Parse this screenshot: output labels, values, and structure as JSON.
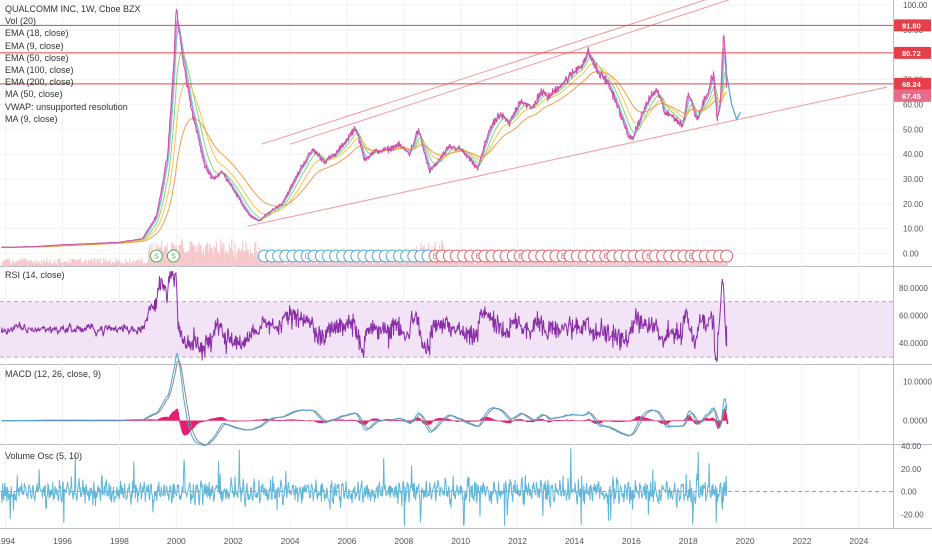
{
  "header": {
    "title": "QUALCOMM INC, 1W, Cboe BZX",
    "indicators": [
      "Vol (20)",
      "EMA (18, close)",
      "EMA (9, close)",
      "EMA (50, close)",
      "EMA (100, close)",
      "EMA (200, close)",
      "MA (50, close)",
      "VWAP: unsupported resolution",
      "MA (9, close)"
    ]
  },
  "panes": {
    "rsi_label": "RSI (14, close)",
    "macd_label": "MACD (12, 26, close, 9)",
    "volosc_label": "Volume Osc (5, 10)"
  },
  "chart_data": {
    "type": "line",
    "title": "QUALCOMM INC, 1W, Cboe BZX",
    "x_ticks": [
      "1994",
      "1996",
      "1998",
      "2000",
      "2002",
      "2004",
      "2006",
      "2008",
      "2010",
      "2012",
      "2014",
      "2016",
      "2018",
      "2020",
      "2022",
      "2024"
    ],
    "x_range": [
      1993.8,
      2025.2
    ],
    "price_axis": {
      "ticks": [
        "100.00",
        "90.00",
        "80.00",
        "70.00",
        "60.00",
        "50.00",
        "40.00",
        "30.00",
        "20.00",
        "10.00",
        "0.00"
      ],
      "range": [
        -5,
        102
      ]
    },
    "horizontal_levels": [
      {
        "value": 91.8,
        "label": "91.80",
        "color": "#e5404a"
      },
      {
        "value": 80.72,
        "label": "80.72",
        "color": "#e5404a"
      },
      {
        "value": 68.24,
        "label": "68.24",
        "color": "#e5404a"
      }
    ],
    "last_price": {
      "value": 67.45,
      "label": "67.45",
      "color": "#e86b8a"
    },
    "price_series": [
      {
        "x": 1994.0,
        "y": 2.5
      },
      {
        "x": 1995.0,
        "y": 2.8
      },
      {
        "x": 1996.0,
        "y": 3.5
      },
      {
        "x": 1997.0,
        "y": 4.0
      },
      {
        "x": 1998.0,
        "y": 4.5
      },
      {
        "x": 1998.8,
        "y": 6
      },
      {
        "x": 1999.3,
        "y": 15
      },
      {
        "x": 1999.7,
        "y": 40
      },
      {
        "x": 1999.9,
        "y": 75
      },
      {
        "x": 2000.0,
        "y": 99
      },
      {
        "x": 2000.2,
        "y": 80
      },
      {
        "x": 2000.5,
        "y": 60
      },
      {
        "x": 2000.8,
        "y": 45
      },
      {
        "x": 2001.0,
        "y": 35
      },
      {
        "x": 2001.3,
        "y": 30
      },
      {
        "x": 2001.6,
        "y": 33
      },
      {
        "x": 2001.9,
        "y": 28
      },
      {
        "x": 2002.3,
        "y": 20
      },
      {
        "x": 2002.6,
        "y": 15
      },
      {
        "x": 2002.9,
        "y": 13
      },
      {
        "x": 2003.3,
        "y": 17
      },
      {
        "x": 2003.7,
        "y": 20
      },
      {
        "x": 2004.0,
        "y": 26
      },
      {
        "x": 2004.4,
        "y": 35
      },
      {
        "x": 2004.8,
        "y": 42
      },
      {
        "x": 2005.2,
        "y": 37
      },
      {
        "x": 2005.6,
        "y": 40
      },
      {
        "x": 2006.0,
        "y": 46
      },
      {
        "x": 2006.3,
        "y": 51
      },
      {
        "x": 2006.6,
        "y": 38
      },
      {
        "x": 2007.0,
        "y": 41
      },
      {
        "x": 2007.5,
        "y": 42
      },
      {
        "x": 2007.8,
        "y": 44
      },
      {
        "x": 2008.2,
        "y": 40
      },
      {
        "x": 2008.5,
        "y": 50
      },
      {
        "x": 2008.9,
        "y": 33
      },
      {
        "x": 2009.2,
        "y": 37
      },
      {
        "x": 2009.6,
        "y": 43
      },
      {
        "x": 2010.0,
        "y": 42
      },
      {
        "x": 2010.3,
        "y": 38
      },
      {
        "x": 2010.6,
        "y": 34
      },
      {
        "x": 2011.0,
        "y": 50
      },
      {
        "x": 2011.4,
        "y": 56
      },
      {
        "x": 2011.7,
        "y": 52
      },
      {
        "x": 2012.1,
        "y": 62
      },
      {
        "x": 2012.5,
        "y": 58
      },
      {
        "x": 2012.8,
        "y": 65
      },
      {
        "x": 2013.1,
        "y": 63
      },
      {
        "x": 2013.5,
        "y": 68
      },
      {
        "x": 2013.9,
        "y": 72
      },
      {
        "x": 2014.3,
        "y": 77
      },
      {
        "x": 2014.5,
        "y": 81
      },
      {
        "x": 2014.8,
        "y": 73
      },
      {
        "x": 2015.1,
        "y": 70
      },
      {
        "x": 2015.4,
        "y": 63
      },
      {
        "x": 2015.7,
        "y": 53
      },
      {
        "x": 2016.0,
        "y": 45
      },
      {
        "x": 2016.3,
        "y": 54
      },
      {
        "x": 2016.6,
        "y": 62
      },
      {
        "x": 2016.9,
        "y": 66
      },
      {
        "x": 2017.2,
        "y": 56
      },
      {
        "x": 2017.5,
        "y": 55
      },
      {
        "x": 2017.8,
        "y": 51
      },
      {
        "x": 2018.0,
        "y": 65
      },
      {
        "x": 2018.3,
        "y": 54
      },
      {
        "x": 2018.6,
        "y": 63
      },
      {
        "x": 2018.9,
        "y": 72
      },
      {
        "x": 2019.0,
        "y": 55
      },
      {
        "x": 2019.1,
        "y": 57
      },
      {
        "x": 2019.25,
        "y": 89
      },
      {
        "x": 2019.35,
        "y": 67.45
      }
    ],
    "ema_series": [
      {
        "name": "EMA (9, close)",
        "color": "#c77dd6",
        "smoothing": 0.35
      },
      {
        "name": "EMA (18, close)",
        "color": "#7bc3e0",
        "smoothing": 0.22
      },
      {
        "name": "EMA (50, close)",
        "color": "#8ad27a",
        "smoothing": 0.1
      },
      {
        "name": "EMA (100, close)",
        "color": "#f2c84b",
        "smoothing": 0.05
      },
      {
        "name": "EMA (200, close)",
        "color": "#f0a04e",
        "smoothing": 0.025
      }
    ],
    "channel_lines": [
      {
        "x1": 2002.5,
        "y1": 11,
        "x2": 2025.0,
        "y2": 67
      },
      {
        "x1": 2003.0,
        "y1": 44,
        "x2": 2020.2,
        "y2": 108
      },
      {
        "x1": 2004.0,
        "y1": 44,
        "x2": 2021.0,
        "y2": 108
      }
    ],
    "markers": {
      "splits": [
        {
          "x": 1999.3,
          "label": "S"
        },
        {
          "x": 1999.9,
          "label": "S"
        }
      ],
      "dividends": {
        "from": 2003.1,
        "to": 2009.1,
        "label": "D"
      },
      "earnings_start": 2009.1,
      "earnings_end": 2019.4,
      "earnings_label": "E"
    },
    "rsi": {
      "axis_ticks": [
        "80.0000",
        "60.0000",
        "40.0000"
      ],
      "range": [
        25,
        95
      ],
      "upper_band": 70,
      "lower_band": 30
    },
    "macd": {
      "axis_ticks": [
        "10.0000",
        "0.0000"
      ],
      "range": [
        -6,
        14
      ]
    },
    "volume_osc": {
      "axis_ticks": [
        "40.00",
        "20.00",
        "0.00",
        "-20.00"
      ],
      "range": [
        -32,
        40
      ]
    },
    "colors": {
      "price": "#d14ea6",
      "volume": "#f3b3b8",
      "rsi_line": "#8a2ea8",
      "rsi_band": "#f3e3f7",
      "macd_line": "#4da6d8",
      "signal_line": "#8b8b8b",
      "macd_hist": "#e4206e",
      "volosc_line": "#5fb6d9",
      "marker_blue": "#4da6d8",
      "marker_red": "#e5606a",
      "marker_green": "#4caf50",
      "channel": "#f29aa0"
    }
  }
}
